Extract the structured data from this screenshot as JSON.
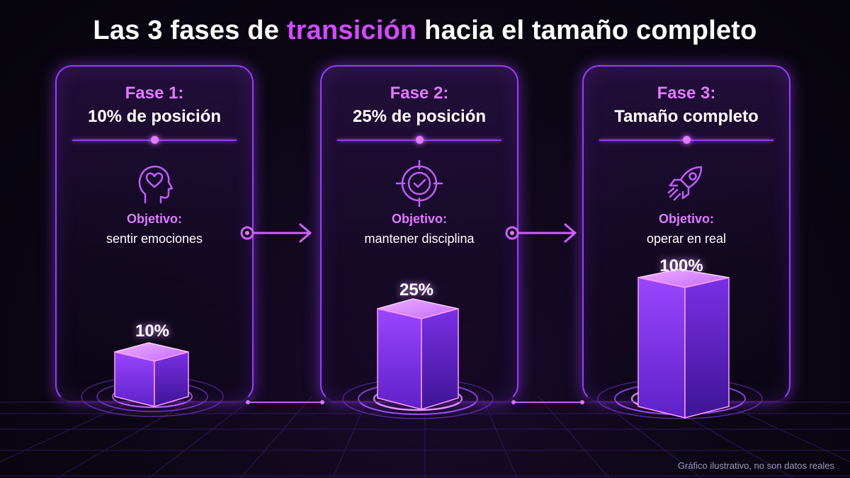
{
  "title": {
    "before": "Las 3 fases de ",
    "accent": "transición",
    "after": " hacia el tamaño completo"
  },
  "phases": [
    {
      "label": "Fase 1:",
      "sub": "10% de posición",
      "objective_label": "Objetivo:",
      "objective": "sentir emociones",
      "percent": "10%",
      "value": 10,
      "icon": "head-heart-icon"
    },
    {
      "label": "Fase 2:",
      "sub": "25% de posición",
      "objective_label": "Objetivo:",
      "objective": "mantener disciplina",
      "percent": "25%",
      "value": 25,
      "icon": "target-check-icon"
    },
    {
      "label": "Fase 3:",
      "sub": "Tamaño completo",
      "objective_label": "Objetivo:",
      "objective": "operar en real",
      "percent": "100%",
      "value": 100,
      "icon": "rocket-icon"
    }
  ],
  "footnote": "Gráfico ilustrativo, no son datos reales",
  "colors": {
    "accent": "#d24bff",
    "border": "#9a3cff",
    "label": "#e07cff",
    "background": "#0b0714"
  }
}
